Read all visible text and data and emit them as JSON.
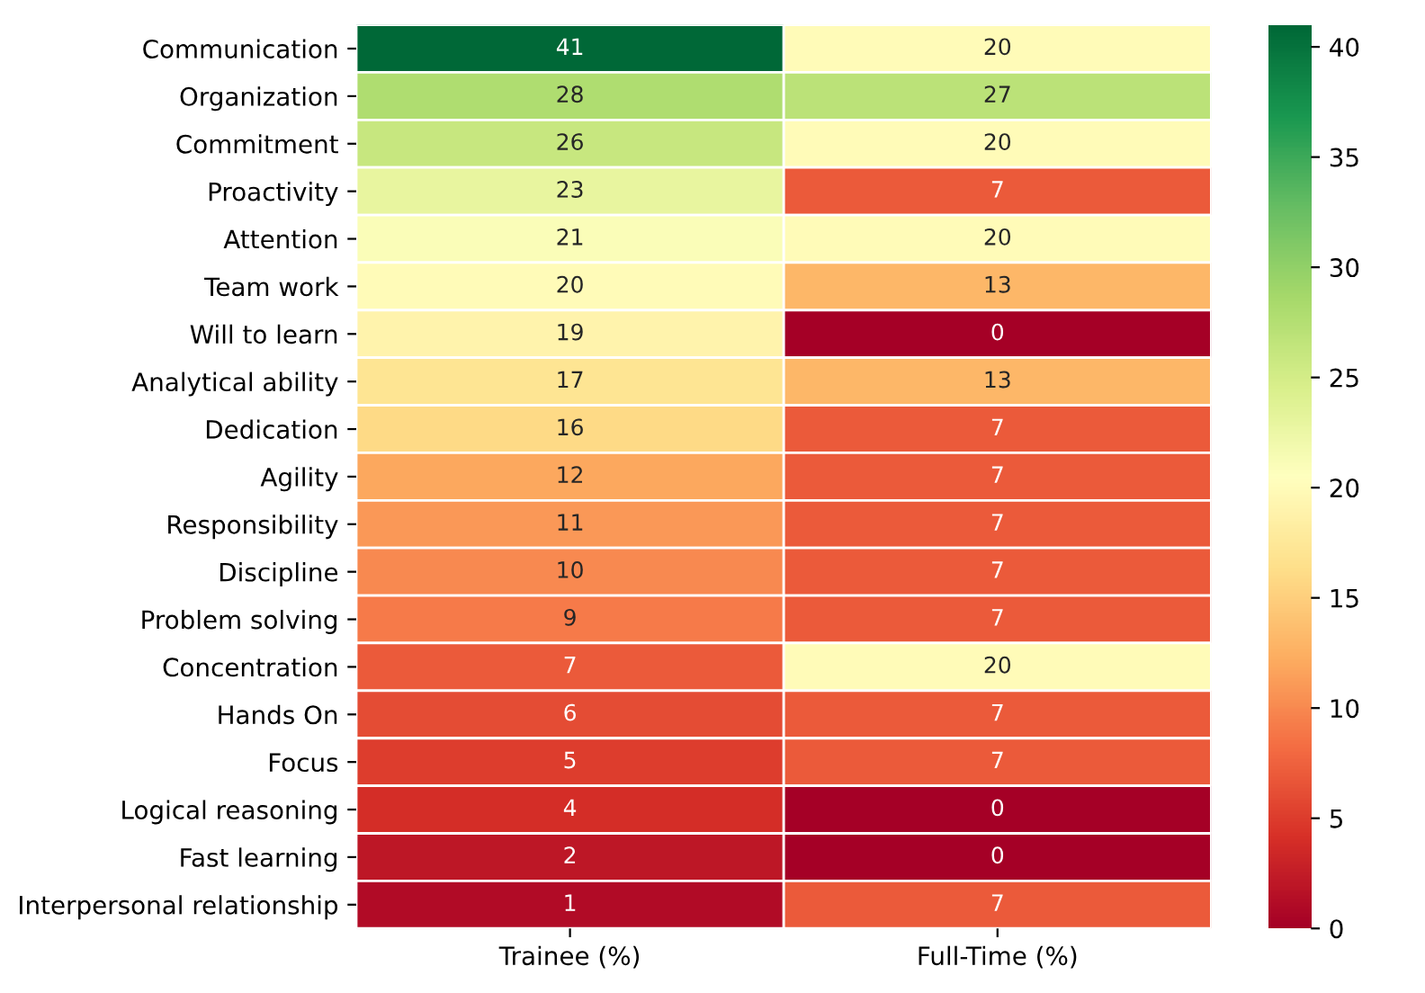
{
  "chart_data": {
    "type": "heatmap",
    "categories": [
      "Trainee (%)",
      "Full-Time (%)"
    ],
    "y_categories": [
      "Communication",
      "Organization",
      "Commitment",
      "Proactivity",
      "Attention",
      "Team work",
      "Will to learn",
      "Analytical ability",
      "Dedication",
      "Agility",
      "Responsibility",
      "Discipline",
      "Problem solving",
      "Concentration",
      "Hands On",
      "Focus",
      "Logical reasoning",
      "Fast learning",
      "Interpersonal relationship"
    ],
    "cells": [
      [
        41,
        20
      ],
      [
        28,
        27
      ],
      [
        26,
        20
      ],
      [
        23,
        7
      ],
      [
        21,
        20
      ],
      [
        20,
        13
      ],
      [
        19,
        0
      ],
      [
        17,
        13
      ],
      [
        16,
        7
      ],
      [
        12,
        7
      ],
      [
        11,
        7
      ],
      [
        10,
        7
      ],
      [
        9,
        7
      ],
      [
        7,
        20
      ],
      [
        6,
        7
      ],
      [
        5,
        7
      ],
      [
        4,
        0
      ],
      [
        2,
        0
      ],
      [
        1,
        7
      ]
    ],
    "clim": [
      0,
      41
    ],
    "cticks": [
      0,
      5,
      10,
      15,
      20,
      25,
      30,
      35,
      40
    ],
    "data_labels": true
  }
}
